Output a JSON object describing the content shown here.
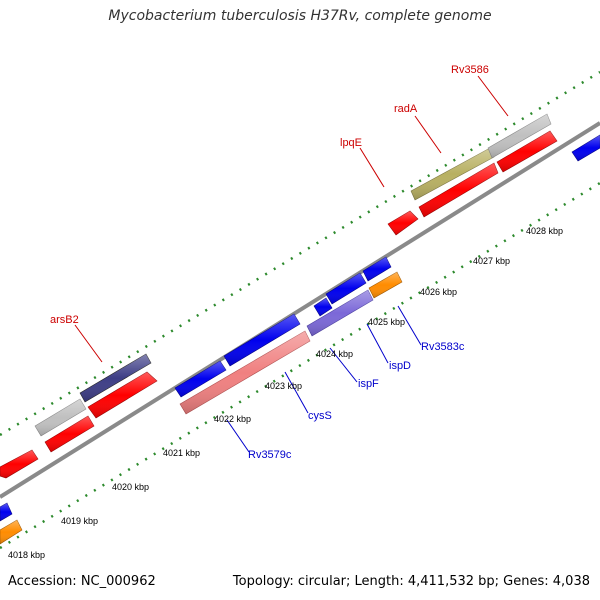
{
  "title": "Mycobacterium tuberculosis H37Rv, complete genome",
  "accession": "Accession: NC_000962",
  "summary": "Topology: circular; Length: 4,411,532 bp; Genes: 4,038",
  "colors": {
    "backbone": "#8a8a8a",
    "tick": "#2d8a2d",
    "red_gene": "#ff0000",
    "blue_gene": "#0000ee",
    "grey_gene": "#c0c0c0",
    "olive_gene": "#b8b062",
    "slate_gene": "#3e3e86",
    "pink_gene": "#f08080",
    "lavender_gene": "#7b68d8",
    "orange_gene": "#ff8c00",
    "red_label": "#cc0000",
    "blue_label": "#0000cc"
  },
  "kbp_labels": [
    "4018 kbp",
    "4019 kbp",
    "4020 kbp",
    "4021 kbp",
    "4022 kbp",
    "4023 kbp",
    "4024 kbp",
    "4025 kbp",
    "4026 kbp",
    "4027 kbp",
    "4028 kbp"
  ],
  "top_genes": [
    "arsB2",
    "lpqE",
    "radA",
    "Rv3586"
  ],
  "bottom_genes": [
    "Rv3579c",
    "cysS",
    "ispF",
    "ispD",
    "Rv3583c"
  ]
}
